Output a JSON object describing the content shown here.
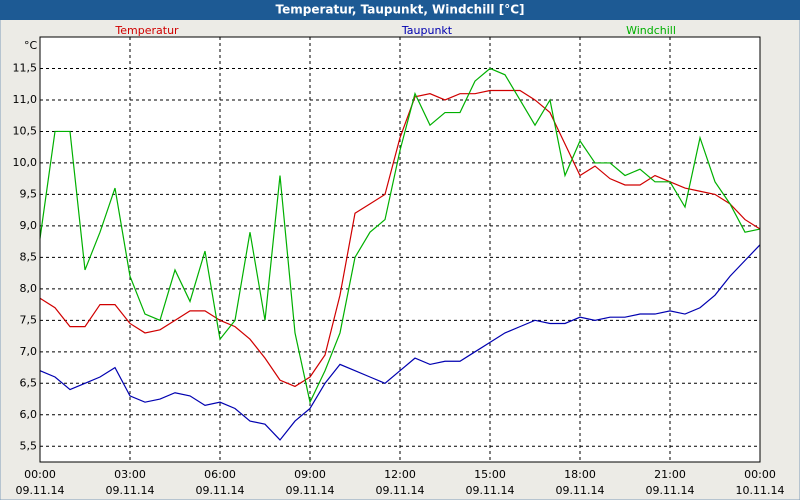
{
  "chart_data": {
    "type": "line",
    "title": "Temperatur, Taupunkt, Windchill [°C]",
    "y_unit": "°C",
    "x": [
      0,
      0.5,
      1,
      1.5,
      2,
      2.5,
      3,
      3.5,
      4,
      4.5,
      5,
      5.5,
      6,
      6.5,
      7,
      7.5,
      8,
      8.5,
      9,
      9.5,
      10,
      10.5,
      11,
      11.5,
      12,
      12.5,
      13,
      13.5,
      14,
      14.5,
      15,
      15.5,
      16,
      16.5,
      17,
      17.5,
      18,
      18.5,
      19,
      19.5,
      20,
      20.5,
      21,
      21.5,
      22,
      22.5,
      23,
      23.5,
      24
    ],
    "series": [
      {
        "name": "Temperatur",
        "color": "#d00000",
        "values": [
          7.85,
          7.7,
          7.4,
          7.4,
          7.75,
          7.75,
          7.45,
          7.3,
          7.35,
          7.5,
          7.65,
          7.65,
          7.5,
          7.4,
          7.2,
          6.9,
          6.55,
          6.45,
          6.6,
          6.95,
          7.9,
          9.2,
          9.35,
          9.5,
          10.4,
          11.05,
          11.1,
          11.0,
          11.1,
          11.1,
          11.15,
          11.15,
          11.15,
          11.0,
          10.8,
          10.3,
          9.8,
          9.95,
          9.75,
          9.65,
          9.65,
          9.8,
          9.7,
          9.6,
          9.55,
          9.5,
          9.35,
          9.1,
          8.95
        ]
      },
      {
        "name": "Taupunkt",
        "color": "#0000b0",
        "values": [
          6.7,
          6.6,
          6.4,
          6.5,
          6.6,
          6.75,
          6.3,
          6.2,
          6.25,
          6.35,
          6.3,
          6.15,
          6.2,
          6.1,
          5.9,
          5.85,
          5.6,
          5.9,
          6.1,
          6.5,
          6.8,
          6.7,
          6.6,
          6.5,
          6.7,
          6.9,
          6.8,
          6.85,
          6.85,
          7.0,
          7.15,
          7.3,
          7.4,
          7.5,
          7.45,
          7.45,
          7.55,
          7.5,
          7.55,
          7.55,
          7.6,
          7.6,
          7.65,
          7.6,
          7.7,
          7.9,
          8.2,
          8.45,
          8.7
        ]
      },
      {
        "name": "Windchill",
        "color": "#00b000",
        "values": [
          8.8,
          10.5,
          10.5,
          8.3,
          8.9,
          9.6,
          8.2,
          7.6,
          7.5,
          8.3,
          7.8,
          8.6,
          7.2,
          7.5,
          8.9,
          7.5,
          9.8,
          7.3,
          6.2,
          6.7,
          7.3,
          8.5,
          8.9,
          9.1,
          10.2,
          11.1,
          10.6,
          10.8,
          10.8,
          11.3,
          11.5,
          11.4,
          11.0,
          10.6,
          11.0,
          9.8,
          10.35,
          10.0,
          10.0,
          9.8,
          9.9,
          9.7,
          9.7,
          9.3,
          10.4,
          9.7,
          9.35,
          8.9,
          8.95
        ]
      }
    ],
    "xlim": [
      0,
      24
    ],
    "xticks": [
      {
        "value": 0,
        "label": "00:00"
      },
      {
        "value": 3,
        "label": "03:00"
      },
      {
        "value": 6,
        "label": "06:00"
      },
      {
        "value": 9,
        "label": "09:00"
      },
      {
        "value": 12,
        "label": "12:00"
      },
      {
        "value": 15,
        "label": "15:00"
      },
      {
        "value": 18,
        "label": "18:00"
      },
      {
        "value": 21,
        "label": "21:00"
      },
      {
        "value": 24,
        "label": "00:00"
      }
    ],
    "xtick_dates": [
      "09.11.14",
      "09.11.14",
      "09.11.14",
      "09.11.14",
      "09.11.14",
      "09.11.14",
      "09.11.14",
      "09.11.14",
      "10.11.14"
    ],
    "ylim": [
      5.25,
      12.0
    ],
    "yticks": [
      {
        "value": 5.5,
        "label": "5,5"
      },
      {
        "value": 6,
        "label": "6,0"
      },
      {
        "value": 6.5,
        "label": "6,5"
      },
      {
        "value": 7,
        "label": "7,0"
      },
      {
        "value": 7.5,
        "label": "7,5"
      },
      {
        "value": 8,
        "label": "8,0"
      },
      {
        "value": 8.5,
        "label": "8,5"
      },
      {
        "value": 9,
        "label": "9,0"
      },
      {
        "value": 9.5,
        "label": "9,5"
      },
      {
        "value": 10,
        "label": "10,0"
      },
      {
        "value": 10.5,
        "label": "10,5"
      },
      {
        "value": 11,
        "label": "11,0"
      },
      {
        "value": 11.5,
        "label": "11,5"
      }
    ],
    "grid": true
  }
}
